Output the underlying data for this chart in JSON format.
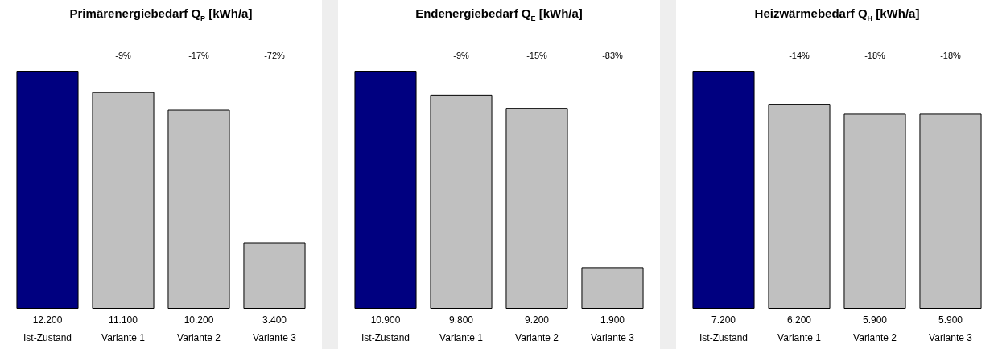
{
  "chart_data": [
    {
      "type": "bar",
      "title": "Primärenergiebedarf Q$_{P}$  [kWh/a]",
      "categories": [
        "Ist-Zustand",
        "Variante 1",
        "Variante 2",
        "Variante 3"
      ],
      "values": [
        12200,
        11100,
        10200,
        3400
      ],
      "colors": [
        "#000080",
        "#c0c0c0",
        "#c0c0c0",
        "#c0c0c0"
      ],
      "value_labels": [
        "12.200",
        "11.100",
        "10.200",
        "3.400"
      ],
      "annotations": [
        "-9%",
        "-17%",
        "-72%"
      ]
    },
    {
      "type": "bar",
      "title": "Endenergiebedarf Q$_{E}$  [kWh/a]",
      "categories": [
        "Ist-Zustand",
        "Variante 1",
        "Variante 2",
        "Variante 3"
      ],
      "values": [
        10900,
        9800,
        9200,
        1900
      ],
      "colors": [
        "#000080",
        "#c0c0c0",
        "#c0c0c0",
        "#c0c0c0"
      ],
      "value_labels": [
        "10.900",
        "9.800",
        "9.200",
        "1.900"
      ],
      "annotations": [
        "-9%",
        "-15%",
        "-83%"
      ]
    },
    {
      "type": "bar",
      "title": "Heizwärmebedarf Q$_{H}$  [kWh/a]",
      "categories": [
        "Ist-Zustand",
        "Variante 1",
        "Variante 2",
        "Variante 3"
      ],
      "values": [
        7200,
        6200,
        5900,
        5900
      ],
      "colors": [
        "#000080",
        "#c0c0c0",
        "#c0c0c0",
        "#c0c0c0"
      ],
      "value_labels": [
        "7.200",
        "6.200",
        "5.900",
        "5.900"
      ],
      "annotations": [
        "-14%",
        "-18%",
        "-18%"
      ]
    }
  ]
}
